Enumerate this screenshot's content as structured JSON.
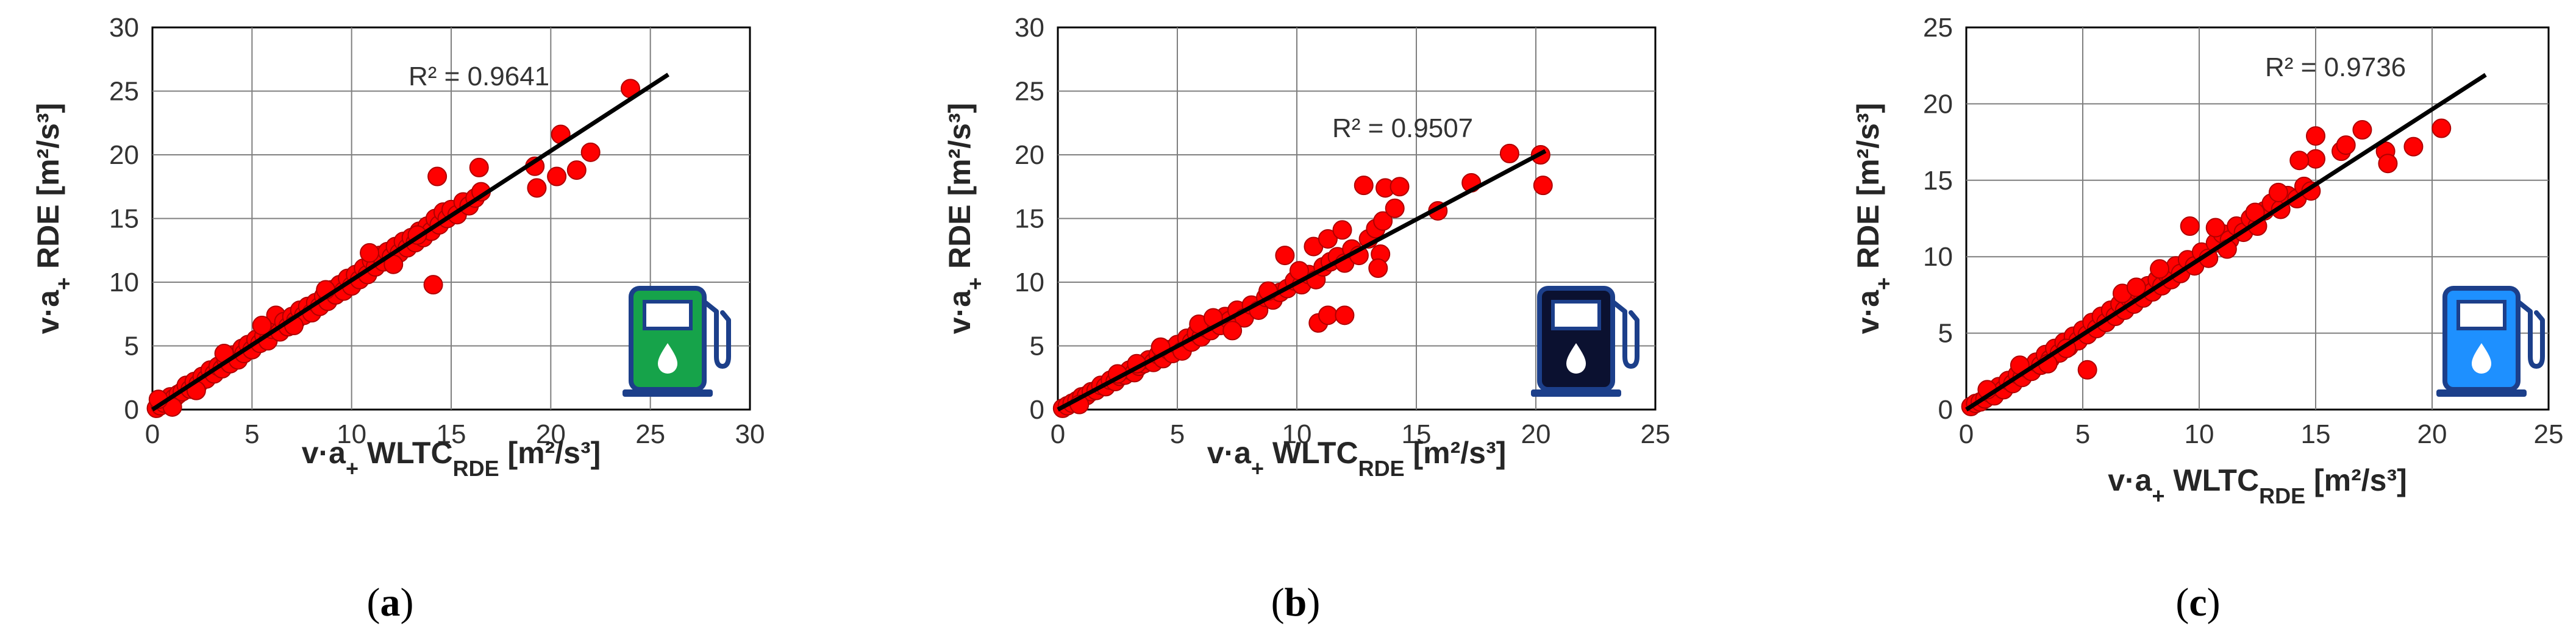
{
  "colors": {
    "marker": "#ff0000",
    "marker_edge": "#b00000",
    "trendline": "#000000",
    "grid": "#7f7f7f",
    "pump_green": "#16a34a",
    "pump_navy": "#0b1130",
    "pump_blue": "#1e90ff",
    "pump_outline": "#1c3f8a"
  },
  "chart_data": [
    {
      "type": "scatter",
      "caption": "a",
      "xlabel": {
        "pre": "v·a",
        "sub": "+",
        "mid": " WLTC",
        "sub2": "RDE",
        "unit": " [m²/s³]"
      },
      "ylabel": {
        "pre": "v·a",
        "sub": "+",
        "mid": " RDE",
        "unit": " [m²/s³]"
      },
      "xlim": [
        0,
        30
      ],
      "ylim": [
        0,
        30
      ],
      "xticks": [
        0,
        5,
        10,
        15,
        20,
        25,
        30
      ],
      "yticks": [
        0,
        5,
        10,
        15,
        20,
        25,
        30
      ],
      "grid": true,
      "r2_label": "R² = 0.9641",
      "trendline": {
        "x": [
          0,
          25.9
        ],
        "y": [
          0,
          26.3
        ]
      },
      "icon": "fuel-pump-green-icon",
      "points": [
        [
          0.2,
          0.1
        ],
        [
          0.4,
          0.3
        ],
        [
          0.6,
          0.5
        ],
        [
          0.8,
          0.7
        ],
        [
          0.9,
          1.0
        ],
        [
          1.1,
          0.9
        ],
        [
          1.3,
          1.2
        ],
        [
          1.5,
          1.4
        ],
        [
          1.7,
          1.9
        ],
        [
          1.9,
          1.6
        ],
        [
          2.1,
          2.2
        ],
        [
          2.3,
          2.0
        ],
        [
          2.5,
          2.6
        ],
        [
          2.7,
          2.4
        ],
        [
          2.9,
          3.1
        ],
        [
          3.1,
          2.8
        ],
        [
          3.3,
          3.4
        ],
        [
          3.5,
          3.2
        ],
        [
          3.7,
          3.9
        ],
        [
          3.9,
          3.6
        ],
        [
          4.1,
          4.3
        ],
        [
          4.3,
          3.9
        ],
        [
          4.5,
          4.8
        ],
        [
          4.6,
          4.4
        ],
        [
          4.8,
          5.1
        ],
        [
          5.0,
          4.7
        ],
        [
          5.2,
          5.5
        ],
        [
          5.4,
          5.2
        ],
        [
          5.6,
          5.8
        ],
        [
          5.8,
          5.4
        ],
        [
          6.0,
          6.3
        ],
        [
          6.2,
          7.4
        ],
        [
          6.4,
          6.1
        ],
        [
          6.6,
          6.9
        ],
        [
          6.8,
          6.5
        ],
        [
          7.0,
          7.3
        ],
        [
          7.2,
          7.0
        ],
        [
          7.4,
          7.8
        ],
        [
          7.6,
          7.4
        ],
        [
          7.8,
          8.1
        ],
        [
          8.0,
          7.6
        ],
        [
          8.2,
          8.4
        ],
        [
          8.4,
          8.1
        ],
        [
          8.6,
          8.9
        ],
        [
          8.8,
          8.5
        ],
        [
          9.0,
          9.4
        ],
        [
          9.2,
          9.0
        ],
        [
          9.4,
          9.8
        ],
        [
          9.6,
          9.3
        ],
        [
          9.8,
          10.3
        ],
        [
          10.0,
          9.7
        ],
        [
          10.2,
          10.6
        ],
        [
          10.4,
          10.2
        ],
        [
          10.6,
          11.1
        ],
        [
          10.8,
          10.6
        ],
        [
          11.0,
          11.7
        ],
        [
          11.2,
          11.2
        ],
        [
          11.4,
          12.1
        ],
        [
          11.6,
          11.6
        ],
        [
          11.8,
          12.4
        ],
        [
          12.0,
          12.0
        ],
        [
          12.2,
          12.8
        ],
        [
          12.4,
          12.3
        ],
        [
          12.6,
          13.2
        ],
        [
          12.8,
          12.7
        ],
        [
          13.0,
          13.5
        ],
        [
          13.2,
          13.1
        ],
        [
          13.4,
          14.0
        ],
        [
          13.6,
          13.5
        ],
        [
          13.8,
          14.4
        ],
        [
          14.0,
          14.0
        ],
        [
          14.2,
          15.0
        ],
        [
          14.4,
          14.5
        ],
        [
          14.6,
          15.5
        ],
        [
          14.8,
          15.0
        ],
        [
          15.0,
          15.7
        ],
        [
          15.3,
          15.3
        ],
        [
          15.6,
          16.3
        ],
        [
          15.9,
          16.0
        ],
        [
          16.2,
          16.6
        ],
        [
          16.5,
          17.1
        ],
        [
          14.3,
          18.3
        ],
        [
          16.4,
          19.0
        ],
        [
          14.1,
          9.8
        ],
        [
          19.2,
          19.1
        ],
        [
          19.3,
          17.4
        ],
        [
          20.3,
          18.3
        ],
        [
          20.5,
          21.6
        ],
        [
          21.3,
          18.8
        ],
        [
          22.0,
          20.2
        ],
        [
          24.0,
          25.2
        ],
        [
          1.0,
          0.2
        ],
        [
          0.3,
          0.8
        ],
        [
          2.2,
          1.5
        ],
        [
          3.6,
          4.4
        ],
        [
          5.5,
          6.6
        ],
        [
          7.1,
          6.6
        ],
        [
          8.7,
          9.4
        ],
        [
          10.9,
          12.3
        ],
        [
          12.1,
          11.4
        ],
        [
          13.3,
          13.7
        ]
      ]
    },
    {
      "type": "scatter",
      "caption": "b",
      "xlabel": {
        "pre": "v·a",
        "sub": "+",
        "mid": " WLTC",
        "sub2": "RDE",
        "unit": " [m²/s³]"
      },
      "ylabel": {
        "pre": "v·a",
        "sub": "+",
        "mid": " RDE",
        "unit": " [m²/s³]"
      },
      "xlim": [
        0,
        25
      ],
      "ylim": [
        0,
        30
      ],
      "xticks": [
        0,
        5,
        10,
        15,
        20,
        25
      ],
      "yticks": [
        0,
        5,
        10,
        15,
        20,
        25,
        30
      ],
      "grid": true,
      "r2_label": "R² = 0.9507",
      "trendline": {
        "x": [
          0,
          20.4
        ],
        "y": [
          0,
          20.3
        ]
      },
      "icon": "fuel-pump-navy-icon",
      "points": [
        [
          0.2,
          0.1
        ],
        [
          0.4,
          0.3
        ],
        [
          0.6,
          0.5
        ],
        [
          0.8,
          0.7
        ],
        [
          1.0,
          1.0
        ],
        [
          1.2,
          1.1
        ],
        [
          1.4,
          1.4
        ],
        [
          1.6,
          1.5
        ],
        [
          1.8,
          1.9
        ],
        [
          2.0,
          1.8
        ],
        [
          2.2,
          2.3
        ],
        [
          2.4,
          2.2
        ],
        [
          2.6,
          2.6
        ],
        [
          2.8,
          2.7
        ],
        [
          3.0,
          3.1
        ],
        [
          3.2,
          2.9
        ],
        [
          3.4,
          3.4
        ],
        [
          3.6,
          3.6
        ],
        [
          3.8,
          3.9
        ],
        [
          4.0,
          3.7
        ],
        [
          4.2,
          4.3
        ],
        [
          4.4,
          4.0
        ],
        [
          4.6,
          4.7
        ],
        [
          4.8,
          4.4
        ],
        [
          5.0,
          5.1
        ],
        [
          5.2,
          4.6
        ],
        [
          5.4,
          5.6
        ],
        [
          5.6,
          5.3
        ],
        [
          5.8,
          6.0
        ],
        [
          6.0,
          5.7
        ],
        [
          6.2,
          6.4
        ],
        [
          6.4,
          6.2
        ],
        [
          6.6,
          6.9
        ],
        [
          6.8,
          6.6
        ],
        [
          7.0,
          7.3
        ],
        [
          7.2,
          7.0
        ],
        [
          7.5,
          7.8
        ],
        [
          7.8,
          7.2
        ],
        [
          8.1,
          8.2
        ],
        [
          8.4,
          7.8
        ],
        [
          8.7,
          8.8
        ],
        [
          9.0,
          8.6
        ],
        [
          9.3,
          9.2
        ],
        [
          9.6,
          9.5
        ],
        [
          9.9,
          10.1
        ],
        [
          10.2,
          9.8
        ],
        [
          10.5,
          10.6
        ],
        [
          10.8,
          10.2
        ],
        [
          11.1,
          11.2
        ],
        [
          11.4,
          11.6
        ],
        [
          11.7,
          12.0
        ],
        [
          12.0,
          11.5
        ],
        [
          12.3,
          12.6
        ],
        [
          12.6,
          12.1
        ],
        [
          13.0,
          13.4
        ],
        [
          13.3,
          14.2
        ],
        [
          13.6,
          14.8
        ],
        [
          9.5,
          12.1
        ],
        [
          10.7,
          12.8
        ],
        [
          11.3,
          13.4
        ],
        [
          11.9,
          14.1
        ],
        [
          12.8,
          17.6
        ],
        [
          13.7,
          17.4
        ],
        [
          14.3,
          17.5
        ],
        [
          13.5,
          12.2
        ],
        [
          13.4,
          11.1
        ],
        [
          10.9,
          6.8
        ],
        [
          11.3,
          7.4
        ],
        [
          12.0,
          7.4
        ],
        [
          14.1,
          15.8
        ],
        [
          15.9,
          15.6
        ],
        [
          17.3,
          17.8
        ],
        [
          18.9,
          20.1
        ],
        [
          20.2,
          20.0
        ],
        [
          20.3,
          17.6
        ],
        [
          0.9,
          0.4
        ],
        [
          2.5,
          2.8
        ],
        [
          4.3,
          4.9
        ],
        [
          5.9,
          6.7
        ],
        [
          7.3,
          6.2
        ],
        [
          8.8,
          9.3
        ],
        [
          10.1,
          10.9
        ],
        [
          3.3,
          3.6
        ],
        [
          6.5,
          7.2
        ]
      ]
    },
    {
      "type": "scatter",
      "caption": "c",
      "xlabel": {
        "pre": "v·a",
        "sub": "+",
        "mid": " WLTC",
        "sub2": "RDE",
        "unit": " [m²/s³]"
      },
      "ylabel": {
        "pre": "v·a",
        "sub": "+",
        "mid": " RDE",
        "unit": " [m²/s³]"
      },
      "xlim": [
        0,
        25
      ],
      "ylim": [
        0,
        25
      ],
      "xticks": [
        0,
        5,
        10,
        15,
        20,
        25
      ],
      "yticks": [
        0,
        5,
        10,
        15,
        20,
        25
      ],
      "grid": true,
      "r2_label": "R² = 0.9736",
      "trendline": {
        "x": [
          0,
          22.3
        ],
        "y": [
          0,
          21.9
        ]
      },
      "icon": "fuel-pump-blue-icon",
      "points": [
        [
          0.2,
          0.2
        ],
        [
          0.4,
          0.4
        ],
        [
          0.6,
          0.5
        ],
        [
          0.8,
          0.7
        ],
        [
          1.0,
          1.1
        ],
        [
          1.2,
          0.9
        ],
        [
          1.4,
          1.5
        ],
        [
          1.6,
          1.3
        ],
        [
          1.8,
          1.9
        ],
        [
          2.0,
          1.7
        ],
        [
          2.2,
          2.3
        ],
        [
          2.4,
          2.1
        ],
        [
          2.6,
          2.7
        ],
        [
          2.8,
          2.5
        ],
        [
          3.0,
          3.1
        ],
        [
          3.2,
          2.9
        ],
        [
          3.4,
          3.6
        ],
        [
          3.6,
          3.3
        ],
        [
          3.8,
          4.0
        ],
        [
          4.0,
          3.7
        ],
        [
          4.2,
          4.4
        ],
        [
          4.4,
          4.1
        ],
        [
          4.6,
          4.8
        ],
        [
          4.8,
          4.5
        ],
        [
          5.0,
          5.2
        ],
        [
          5.2,
          4.9
        ],
        [
          5.4,
          5.7
        ],
        [
          5.6,
          5.3
        ],
        [
          5.8,
          6.1
        ],
        [
          6.0,
          5.7
        ],
        [
          6.2,
          6.5
        ],
        [
          6.4,
          6.1
        ],
        [
          6.6,
          6.9
        ],
        [
          6.8,
          6.5
        ],
        [
          7.0,
          7.3
        ],
        [
          7.2,
          6.9
        ],
        [
          7.4,
          7.7
        ],
        [
          7.6,
          7.3
        ],
        [
          7.8,
          8.1
        ],
        [
          8.0,
          7.7
        ],
        [
          8.2,
          8.5
        ],
        [
          8.4,
          8.1
        ],
        [
          8.6,
          8.9
        ],
        [
          8.8,
          8.5
        ],
        [
          9.0,
          9.4
        ],
        [
          9.2,
          8.9
        ],
        [
          9.5,
          9.8
        ],
        [
          9.8,
          9.4
        ],
        [
          10.1,
          10.3
        ],
        [
          10.4,
          9.9
        ],
        [
          10.7,
          10.9
        ],
        [
          11.0,
          11.5
        ],
        [
          11.3,
          11.1
        ],
        [
          11.6,
          12.0
        ],
        [
          11.9,
          11.6
        ],
        [
          12.2,
          12.5
        ],
        [
          12.5,
          12.0
        ],
        [
          12.8,
          13.0
        ],
        [
          13.1,
          13.5
        ],
        [
          13.5,
          13.1
        ],
        [
          13.8,
          14.0
        ],
        [
          14.2,
          13.8
        ],
        [
          14.5,
          14.6
        ],
        [
          14.8,
          14.3
        ],
        [
          15.0,
          16.4
        ],
        [
          14.3,
          16.3
        ],
        [
          15.0,
          17.9
        ],
        [
          16.1,
          16.9
        ],
        [
          16.3,
          17.3
        ],
        [
          17.0,
          18.3
        ],
        [
          18.0,
          16.9
        ],
        [
          18.1,
          16.1
        ],
        [
          19.2,
          17.2
        ],
        [
          20.4,
          18.4
        ],
        [
          9.6,
          12.0
        ],
        [
          5.2,
          2.6
        ],
        [
          10.7,
          11.9
        ],
        [
          12.4,
          12.9
        ],
        [
          0.9,
          1.3
        ],
        [
          2.3,
          2.9
        ],
        [
          4.3,
          4.0
        ],
        [
          6.7,
          7.6
        ],
        [
          8.3,
          9.2
        ],
        [
          11.2,
          10.5
        ],
        [
          3.5,
          3.0
        ],
        [
          7.3,
          8.0
        ],
        [
          13.4,
          14.2
        ]
      ]
    }
  ]
}
